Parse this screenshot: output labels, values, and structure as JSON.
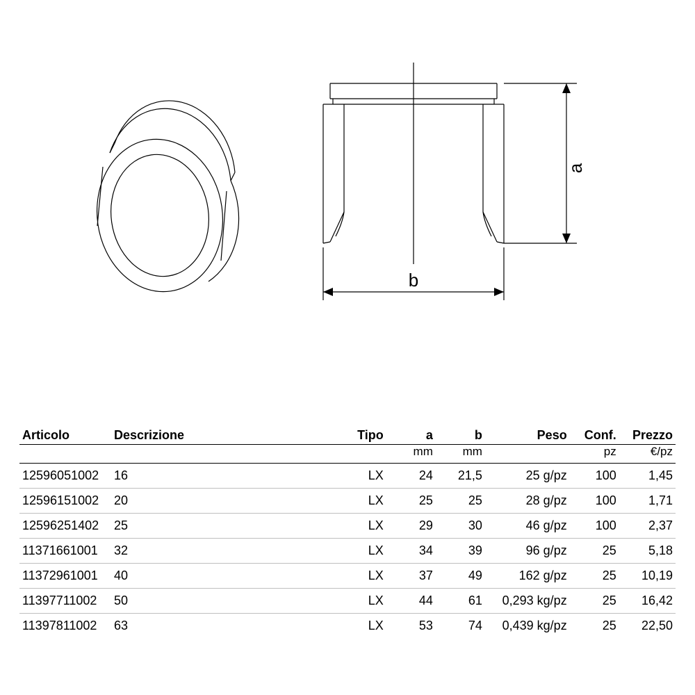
{
  "diagram": {
    "stroke": "#000000",
    "stroke_width": 1.2,
    "label_a": "a",
    "label_b": "b",
    "font_size": 26
  },
  "table": {
    "columns": [
      {
        "header": "Articolo",
        "sub": "",
        "align": "left",
        "class": "col-articolo"
      },
      {
        "header": "Descrizione",
        "sub": "",
        "align": "left",
        "class": "col-descr"
      },
      {
        "header": "Tipo",
        "sub": "",
        "align": "right",
        "class": "col-tipo"
      },
      {
        "header": "a",
        "sub": "mm",
        "align": "right",
        "class": "col-a"
      },
      {
        "header": "b",
        "sub": "mm",
        "align": "right",
        "class": "col-b"
      },
      {
        "header": "Peso",
        "sub": "",
        "align": "right",
        "class": "col-peso"
      },
      {
        "header": "Conf.",
        "sub": "pz",
        "align": "right",
        "class": "col-conf"
      },
      {
        "header": "Prezzo",
        "sub": "€/pz",
        "align": "right",
        "class": "col-prezzo"
      }
    ],
    "rows": [
      [
        "12596051002",
        "16",
        "LX",
        "24",
        "21,5",
        "25 g/pz",
        "100",
        "1,45"
      ],
      [
        "12596151002",
        "20",
        "LX",
        "25",
        "25",
        "28 g/pz",
        "100",
        "1,71"
      ],
      [
        "12596251402",
        "25",
        "LX",
        "29",
        "30",
        "46 g/pz",
        "100",
        "2,37"
      ],
      [
        "11371661001",
        "32",
        "LX",
        "34",
        "39",
        "96 g/pz",
        "25",
        "5,18"
      ],
      [
        "11372961001",
        "40",
        "LX",
        "37",
        "49",
        "162 g/pz",
        "25",
        "10,19"
      ],
      [
        "11397711002",
        "50",
        "LX",
        "44",
        "61",
        "0,293 kg/pz",
        "25",
        "16,42"
      ],
      [
        "11397811002",
        "63",
        "LX",
        "53",
        "74",
        "0,439 kg/pz",
        "25",
        "22,50"
      ]
    ]
  }
}
